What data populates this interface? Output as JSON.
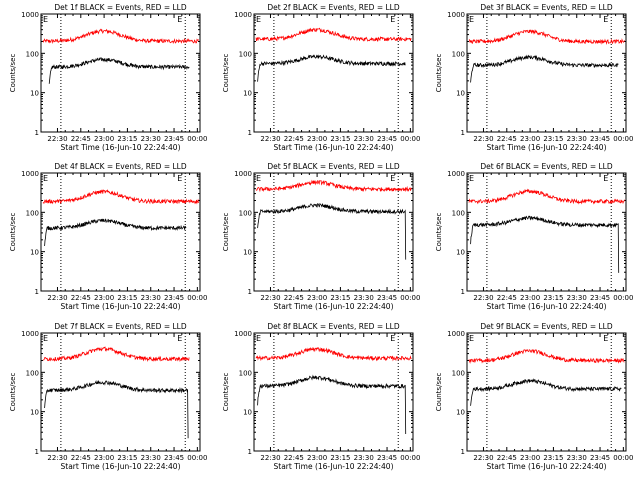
{
  "colors": {
    "events": "#000000",
    "lld": "#ff0000",
    "axis": "#000000",
    "background": "#ffffff"
  },
  "axes": {
    "ylabel": "Counts/sec",
    "xlabel": "Start Time (16-Jun-10 22:24:40)",
    "yscale": "log",
    "ylim": [
      1,
      1000
    ],
    "yticks": [
      "1",
      "10",
      "100",
      "1000"
    ],
    "xticks": [
      "22:30",
      "22:45",
      "23:00",
      "23:15",
      "23:30",
      "23:45",
      "00:00"
    ],
    "xlim_minutes": [
      -5.3,
      97.0
    ],
    "tick_minutes": [
      5.3,
      20.3,
      35.3,
      50.3,
      65.3,
      80.3,
      95.3
    ],
    "marker_minutes": [
      7.5,
      87.5
    ],
    "marker_labels": [
      "E",
      "E"
    ]
  },
  "chart_data": [
    {
      "type": "line",
      "title": "Det 1f BLACK = Events, RED = LLD",
      "series": [
        {
          "color": "#ff0000",
          "base": 205,
          "bump": 1.8,
          "start": -4,
          "end": 96,
          "drop": false
        },
        {
          "color": "#000000",
          "base": 45,
          "bump": 1.55,
          "start": 0,
          "end": 90,
          "drop": false
        }
      ]
    },
    {
      "type": "line",
      "title": "Det 2f BLACK = Events, RED = LLD",
      "series": [
        {
          "color": "#ff0000",
          "base": 230,
          "bump": 1.75,
          "start": -4,
          "end": 96,
          "drop": false
        },
        {
          "color": "#000000",
          "base": 55,
          "bump": 1.5,
          "start": -3,
          "end": 92,
          "drop": false
        }
      ]
    },
    {
      "type": "line",
      "title": "Det 3f BLACK = Events, RED = LLD",
      "series": [
        {
          "color": "#ff0000",
          "base": 200,
          "bump": 1.8,
          "start": -4,
          "end": 96,
          "drop": false
        },
        {
          "color": "#000000",
          "base": 50,
          "bump": 1.6,
          "start": -3,
          "end": 92,
          "drop": false
        }
      ]
    },
    {
      "type": "line",
      "title": "Det 4f BLACK = Events, RED = LLD",
      "series": [
        {
          "color": "#ff0000",
          "base": 190,
          "bump": 1.75,
          "start": -4,
          "end": 96,
          "drop": false
        },
        {
          "color": "#000000",
          "base": 40,
          "bump": 1.55,
          "start": -3,
          "end": 88,
          "drop": false
        }
      ]
    },
    {
      "type": "line",
      "title": "Det 5f BLACK = Events, RED = LLD",
      "series": [
        {
          "color": "#ff0000",
          "base": 390,
          "bump": 1.5,
          "start": -4,
          "end": 96,
          "drop": false
        },
        {
          "color": "#000000",
          "base": 105,
          "bump": 1.45,
          "start": -3,
          "end": 92,
          "drop": true
        }
      ]
    },
    {
      "type": "line",
      "title": "Det 6f BLACK = Events, RED = LLD",
      "series": [
        {
          "color": "#ff0000",
          "base": 190,
          "bump": 1.8,
          "start": -4,
          "end": 96,
          "drop": false
        },
        {
          "color": "#000000",
          "base": 48,
          "bump": 1.5,
          "start": -3,
          "end": 92,
          "drop": true
        }
      ]
    },
    {
      "type": "line",
      "title": "Det 7f BLACK = Events, RED = LLD",
      "series": [
        {
          "color": "#ff0000",
          "base": 220,
          "bump": 1.8,
          "start": -4,
          "end": 90,
          "drop": false
        },
        {
          "color": "#000000",
          "base": 35,
          "bump": 1.6,
          "start": -3,
          "end": 89,
          "drop": true
        }
      ]
    },
    {
      "type": "line",
      "title": "Det 8f BLACK = Events, RED = LLD",
      "series": [
        {
          "color": "#ff0000",
          "base": 230,
          "bump": 1.7,
          "start": -4,
          "end": 96,
          "drop": false
        },
        {
          "color": "#000000",
          "base": 45,
          "bump": 1.65,
          "start": -3,
          "end": 92,
          "drop": true
        }
      ]
    },
    {
      "type": "line",
      "title": "Det 9f BLACK = Events, RED = LLD",
      "series": [
        {
          "color": "#ff0000",
          "base": 200,
          "bump": 1.75,
          "start": -4,
          "end": 96,
          "drop": false
        },
        {
          "color": "#000000",
          "base": 38,
          "bump": 1.6,
          "start": -3,
          "end": 94,
          "drop": false
        }
      ]
    }
  ]
}
